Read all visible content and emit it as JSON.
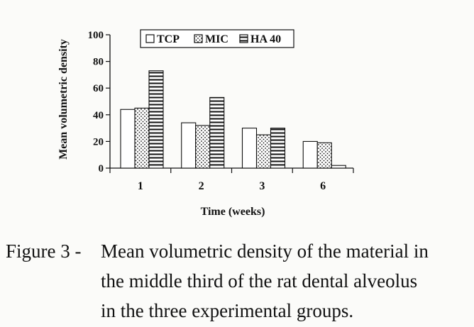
{
  "chart_data": {
    "type": "bar",
    "categories": [
      "1",
      "2",
      "3",
      "6"
    ],
    "series": [
      {
        "name": "TCP",
        "values": [
          44,
          34,
          30,
          20
        ],
        "pattern": "plain"
      },
      {
        "name": "MIC",
        "values": [
          45,
          32,
          25,
          19
        ],
        "pattern": "dots"
      },
      {
        "name": "HA 40",
        "values": [
          73,
          53,
          30,
          2
        ],
        "pattern": "horizontal-lines"
      }
    ],
    "title": "",
    "xlabel": "Time (weeks)",
    "ylabel": "Mean volumetric density",
    "ylim": [
      0,
      100
    ],
    "yticks": [
      "0",
      "20",
      "40",
      "60",
      "80",
      "100"
    ],
    "grid": false,
    "legend": "top-center, boxed"
  },
  "caption": {
    "label": "Figure 3 -",
    "lines": [
      "Mean volumetric density of the material in",
      "the middle third of the rat dental alveolus",
      "in the three experimental groups."
    ]
  },
  "colors": {
    "ink": "#111111",
    "paper": "#fbfbf9"
  }
}
